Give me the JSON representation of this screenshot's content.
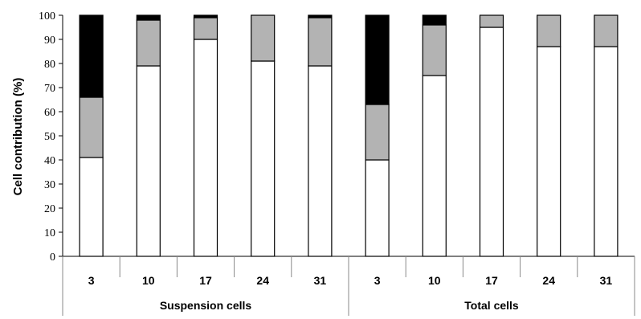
{
  "chart_data": {
    "type": "bar",
    "stacked": true,
    "title": "",
    "xlabel": "",
    "ylabel": "Cell contribution (%)",
    "ylim": [
      0,
      100
    ],
    "yticks": [
      "0",
      "10",
      "20",
      "30",
      "40",
      "50",
      "60",
      "70",
      "80",
      "90",
      "100"
    ],
    "categories": [
      "3",
      "10",
      "17",
      "24",
      "31",
      "3",
      "10",
      "17",
      "24",
      "31"
    ],
    "groups": [
      {
        "label": "Suspension cells",
        "categories": [
          "3",
          "10",
          "17",
          "24",
          "31"
        ]
      },
      {
        "label": "Total cells",
        "categories": [
          "3",
          "10",
          "17",
          "24",
          "31"
        ]
      }
    ],
    "series": [
      {
        "color": "#ffffff",
        "values": [
          41,
          79,
          90,
          81,
          79,
          40,
          75,
          95,
          87,
          87
        ]
      },
      {
        "color": "#b3b3b3",
        "values": [
          25,
          19,
          9,
          19,
          20,
          23,
          21,
          5,
          13,
          13
        ]
      },
      {
        "color": "#000000",
        "values": [
          34,
          2,
          1,
          0,
          1,
          37,
          4,
          0,
          0,
          0
        ]
      }
    ],
    "grid": false,
    "legend": "none"
  }
}
